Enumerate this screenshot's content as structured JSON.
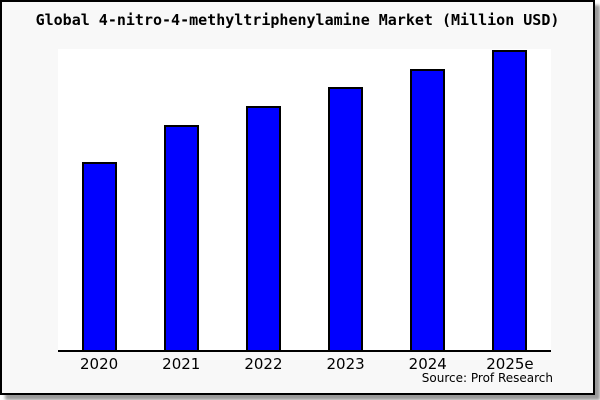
{
  "window": {
    "background": "#f8f8f8",
    "plot_background": "#ffffff",
    "border_color": "#000000",
    "shadow_color": "#999999"
  },
  "footer": {
    "source": "Source: Prof Research"
  },
  "chart_data": {
    "type": "bar",
    "title": "Global 4-nitro-4-methyltriphenylamine Market (Million USD)",
    "categories": [
      "2020",
      "2021",
      "2022",
      "2023",
      "2024",
      "2025e"
    ],
    "values": [
      62.7,
      75.0,
      81.3,
      87.7,
      93.7,
      100.0
    ],
    "values_note": "No y-axis tick labels are shown in the image; values are relative bar heights estimated from pixels, indexed to 2025e = 100",
    "xlabel": "",
    "ylabel": "",
    "ylim": [
      0,
      100.3
    ],
    "grid": false,
    "legend": false,
    "y_axis_visible": false,
    "bar_color": "#0000ff",
    "bar_border_color": "#000000"
  }
}
